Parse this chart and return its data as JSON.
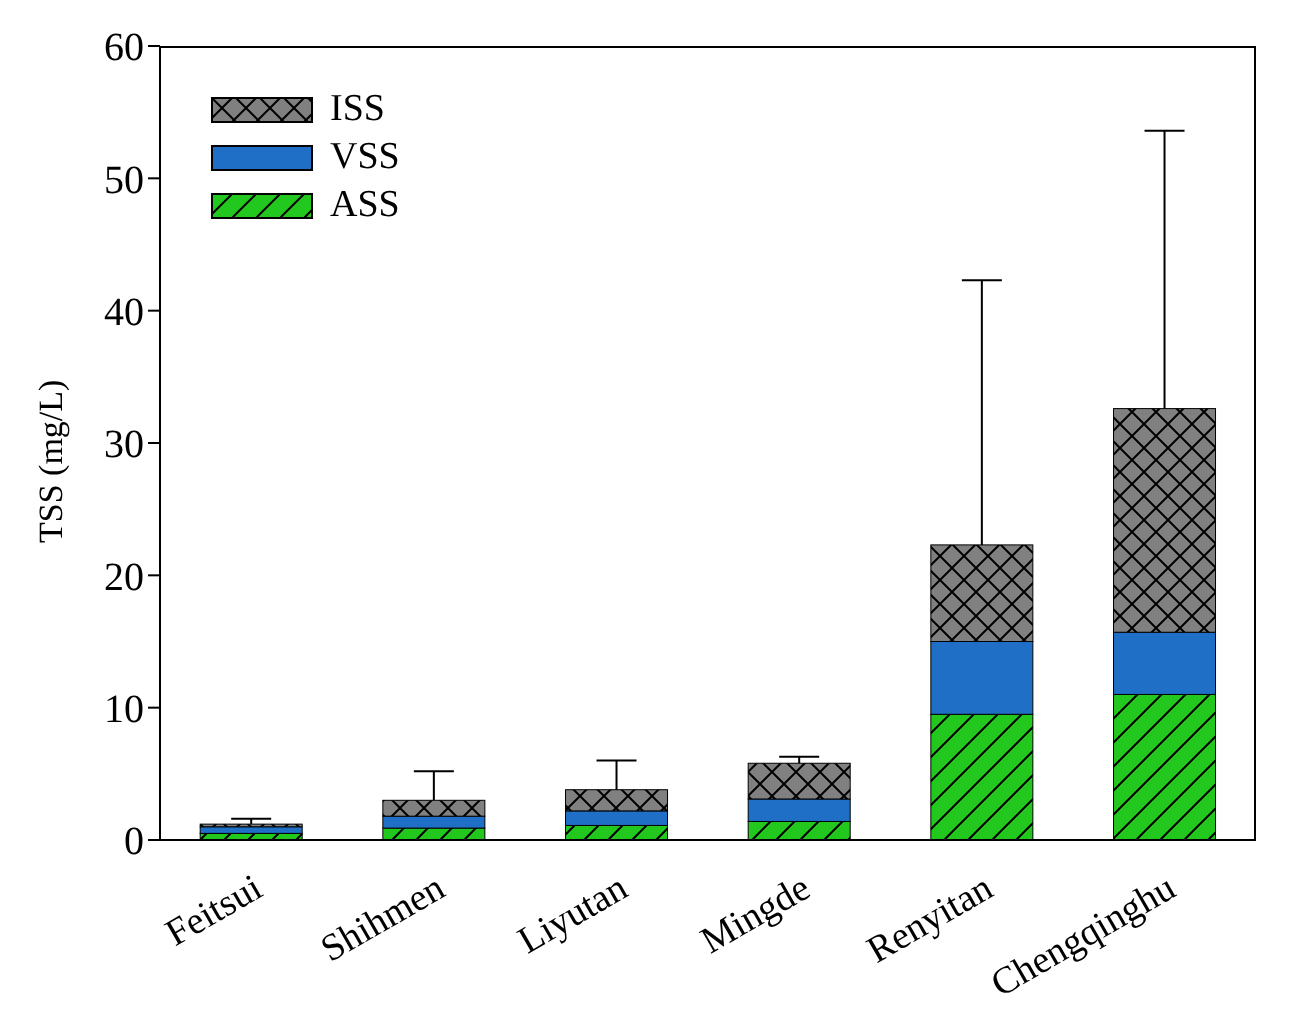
{
  "chart_data": {
    "type": "bar",
    "stacked": true,
    "ylabel": "TSS (mg/L)",
    "categories": [
      "Feitsui",
      "Shihmen",
      "Liyutan",
      "Mingde",
      "Renyitan",
      "Chengqinghu"
    ],
    "series": [
      {
        "name": "ASS",
        "color": "#22c81e",
        "values": [
          0.5,
          0.9,
          1.1,
          1.4,
          9.5,
          11.0
        ]
      },
      {
        "name": "VSS",
        "color": "#1f6fc6",
        "values": [
          0.5,
          0.9,
          1.1,
          1.7,
          5.5,
          4.7
        ]
      },
      {
        "name": "ISS",
        "color": "#808080",
        "values": [
          0.2,
          1.2,
          1.6,
          2.7,
          7.3,
          16.9
        ],
        "errors": [
          0.4,
          2.2,
          2.2,
          0.5,
          20.0,
          21.0
        ]
      }
    ],
    "ylim": [
      0,
      60
    ],
    "yticks": [
      0,
      10,
      20,
      30,
      40,
      50,
      60
    ],
    "grid": false,
    "legend": "top left"
  }
}
